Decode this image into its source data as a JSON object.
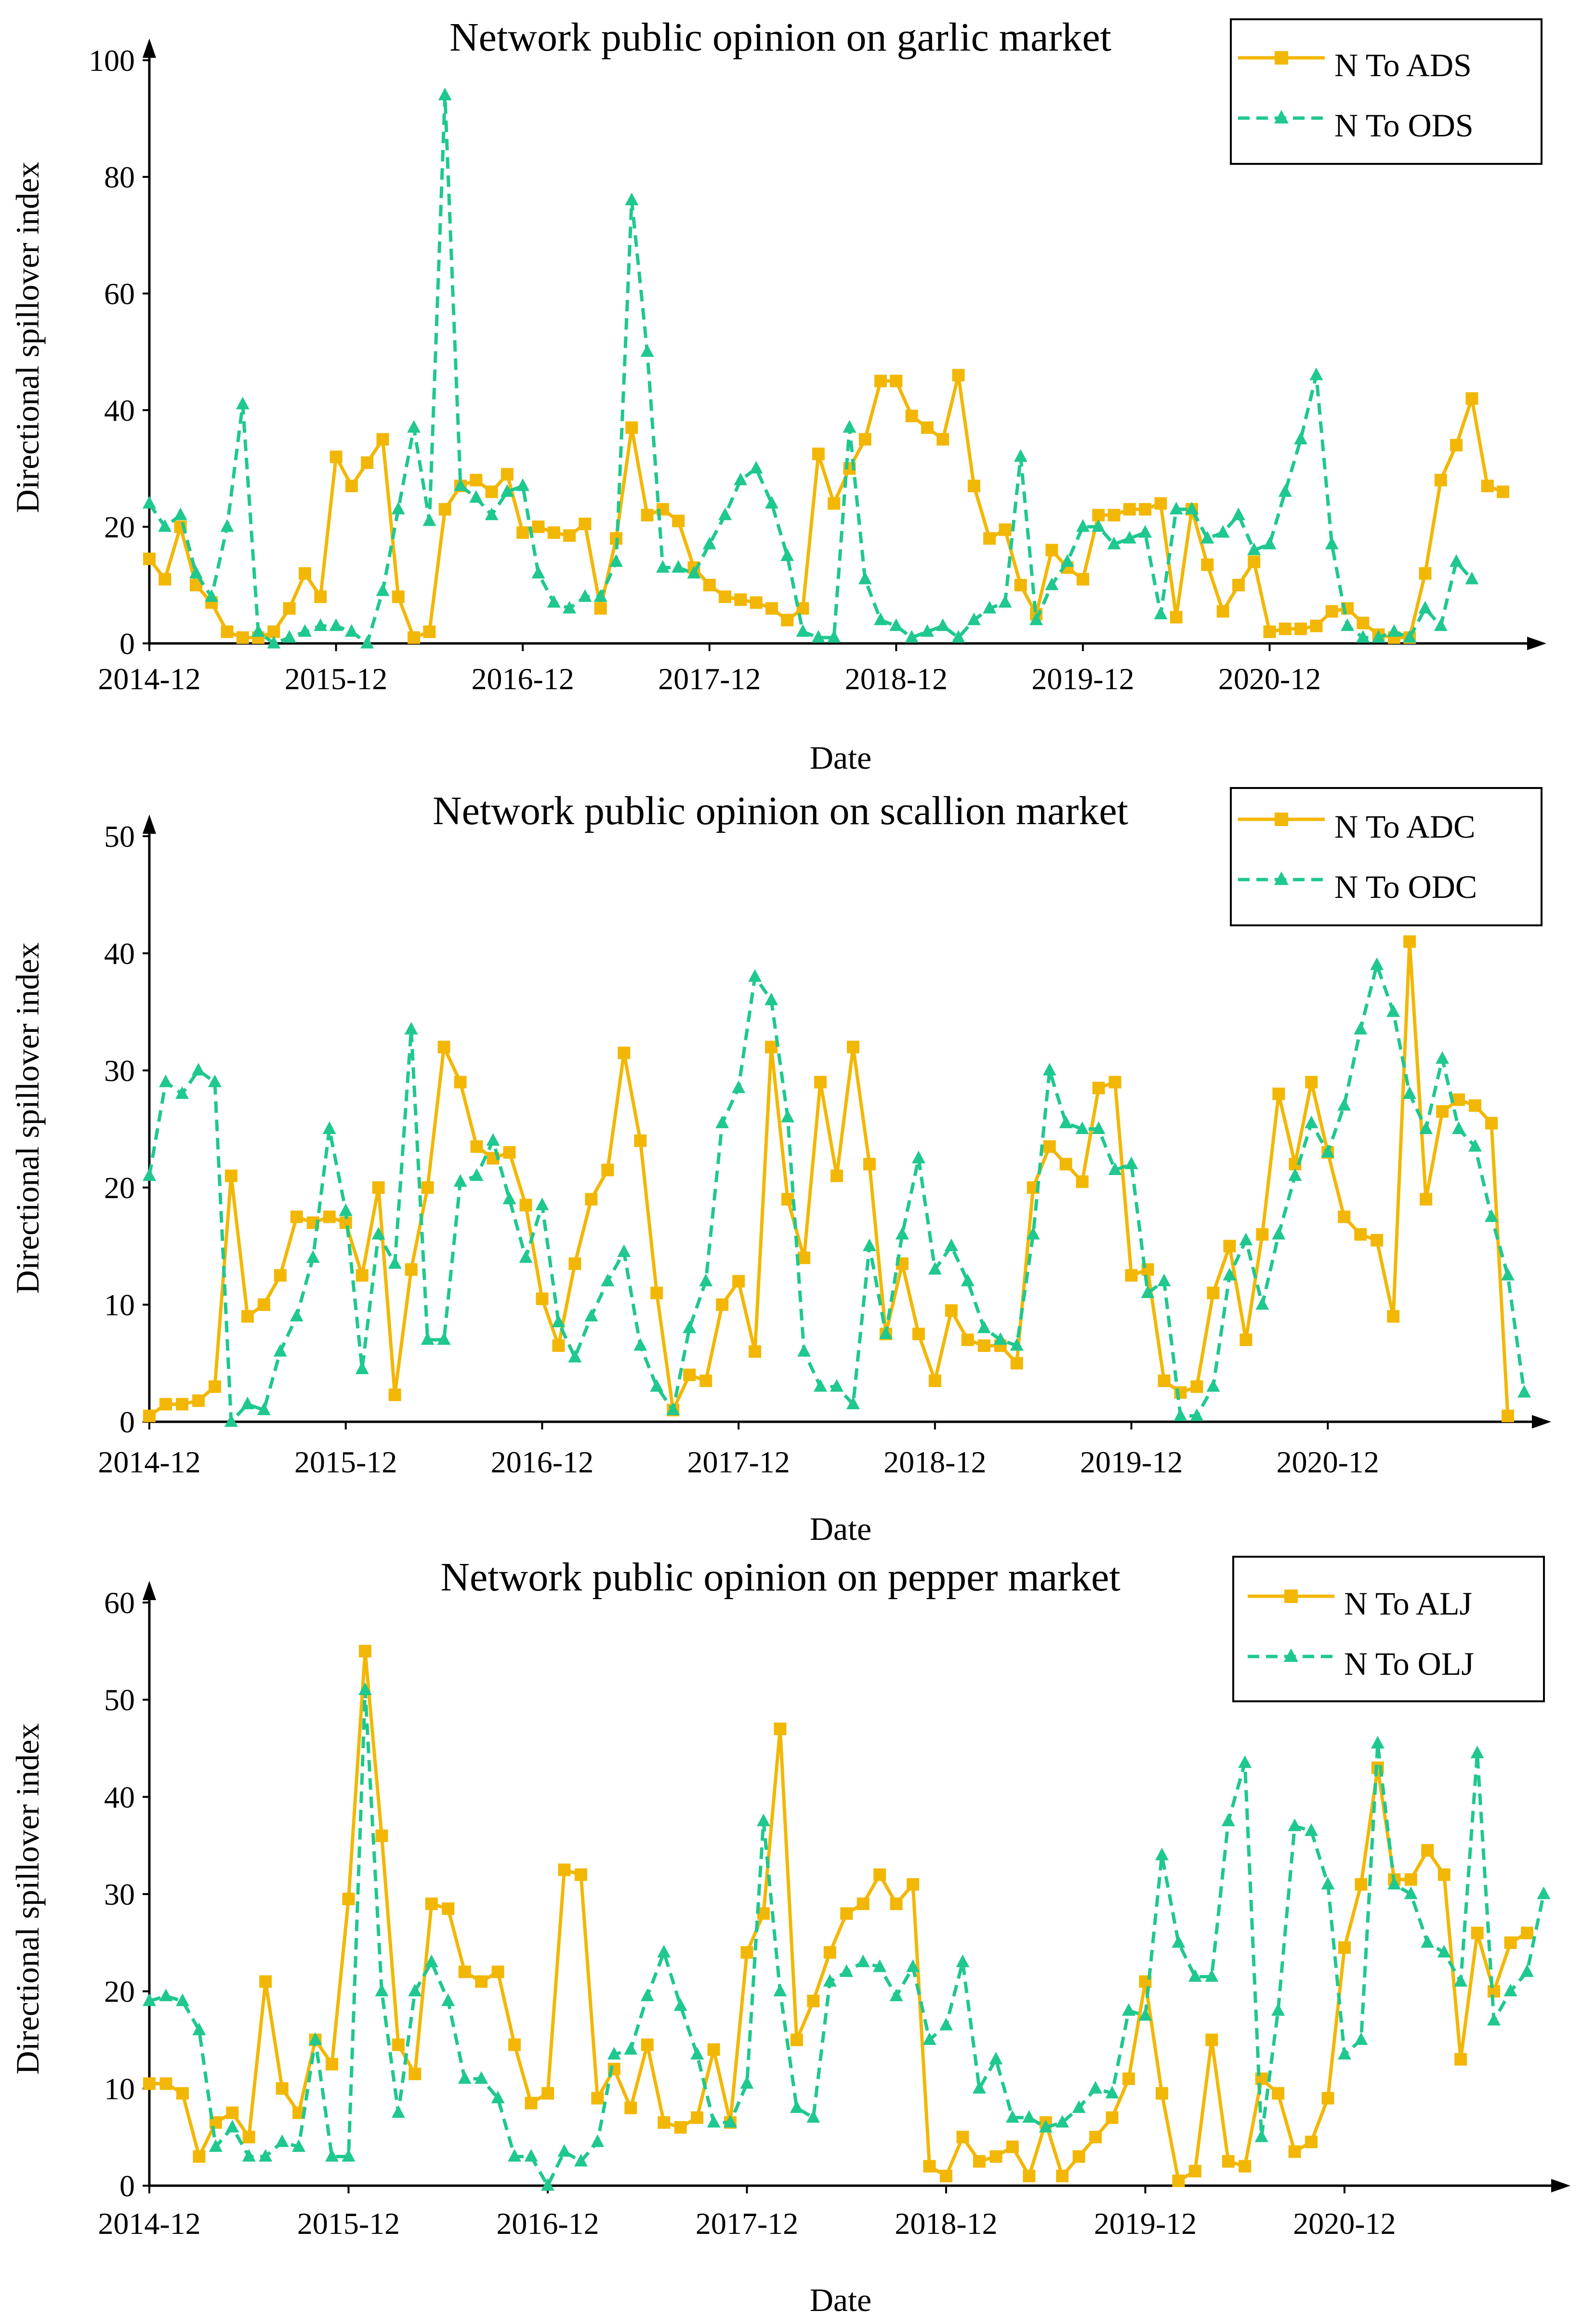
{
  "colors": {
    "series_a": "#F2B705",
    "series_o": "#1FC88E",
    "axis": "#000000"
  },
  "chart_data": [
    {
      "type": "line",
      "title": "Network public opinion on garlic market",
      "xlabel": "Date",
      "ylabel": "Directional spillover index",
      "ylim": [
        0,
        100
      ],
      "yticks": [
        "0",
        "20",
        "40",
        "60",
        "80",
        "100"
      ],
      "xticks": [
        "2014-12",
        "2015-12",
        "2016-12",
        "2017-12",
        "2018-12",
        "2019-12",
        "2020-12"
      ],
      "legend_position": "top-right",
      "series": [
        {
          "name": "N To ADS",
          "style": "solid-square",
          "values": [
            14.5,
            11,
            20,
            10,
            7,
            2,
            1,
            1,
            2,
            6,
            12,
            8,
            32,
            27,
            31,
            35,
            8,
            1,
            2,
            23,
            27,
            28,
            26,
            29,
            19,
            20,
            19,
            18.5,
            20.5,
            6,
            18,
            37,
            22,
            23,
            21,
            13,
            10,
            8,
            7.5,
            7,
            6,
            4,
            6,
            32.5,
            24,
            30,
            35,
            45,
            45,
            39,
            37,
            35,
            46,
            27,
            18,
            19.5,
            10,
            5,
            16,
            13,
            11,
            22,
            22,
            23,
            23,
            24,
            4.5,
            23,
            13.5,
            5.5,
            10,
            14,
            2,
            2.5,
            2.5,
            3,
            5.5,
            6,
            3.5,
            1.5,
            1,
            1,
            12,
            28,
            34,
            42,
            27,
            26
          ]
        },
        {
          "name": "N To ODS",
          "style": "dashed-triangle",
          "values": [
            24,
            20,
            22,
            12,
            8,
            20,
            41,
            2,
            0,
            1,
            2,
            3,
            3,
            2,
            0,
            9,
            23,
            37,
            21,
            94,
            27,
            25,
            22,
            26,
            27,
            12,
            7,
            6,
            8,
            8,
            14,
            76,
            50,
            13,
            13,
            12,
            17,
            22,
            28,
            30,
            24,
            15,
            2,
            1,
            1,
            37,
            11,
            4,
            3,
            1,
            2,
            3,
            1,
            4,
            6,
            7,
            32,
            4,
            10,
            14,
            20,
            20,
            17,
            18,
            19,
            5,
            23,
            23,
            18,
            19,
            22,
            16,
            17,
            26,
            35,
            46,
            17,
            3,
            1,
            1,
            2,
            1,
            6,
            3,
            14,
            11
          ]
        }
      ]
    },
    {
      "type": "line",
      "title": "Network public opinion on scallion market",
      "xlabel": "Date",
      "ylabel": "Directional spillover index",
      "ylim": [
        0,
        50
      ],
      "yticks": [
        "0",
        "10",
        "20",
        "30",
        "40",
        "50"
      ],
      "xticks": [
        "2014-12",
        "2015-12",
        "2016-12",
        "2017-12",
        "2018-12",
        "2019-12",
        "2020-12"
      ],
      "legend_position": "top-right",
      "series": [
        {
          "name": "N To ADC",
          "style": "solid-square",
          "values": [
            0.5,
            1.5,
            1.5,
            1.8,
            3,
            21,
            9,
            10,
            12.5,
            17.5,
            17,
            17.5,
            17,
            12.5,
            20,
            2.3,
            13,
            20,
            32,
            29,
            23.5,
            22.5,
            23,
            18.5,
            10.5,
            6.5,
            13.5,
            19,
            21.5,
            31.5,
            24,
            11,
            1,
            4,
            3.5,
            10,
            12,
            6,
            32,
            19,
            14,
            29,
            21,
            32,
            22,
            7.5,
            13.5,
            7.5,
            3.5,
            9.5,
            7,
            6.5,
            6.5,
            5,
            20,
            23.5,
            22,
            20.5,
            28.5,
            29,
            12.5,
            13,
            3.5,
            2.5,
            3,
            11,
            15,
            7,
            16,
            28,
            22,
            29,
            23,
            17.5,
            16,
            15.5,
            9,
            41,
            19,
            26.5,
            27.5,
            27,
            25.5,
            0.5
          ]
        },
        {
          "name": "N To ODC",
          "style": "dashed-triangle",
          "values": [
            21,
            29,
            28,
            30,
            29,
            0,
            1.5,
            1,
            6,
            9,
            14,
            25,
            18,
            4.5,
            16,
            13.5,
            33.5,
            7,
            7,
            20.5,
            21,
            24,
            19,
            14,
            18.5,
            8.5,
            5.5,
            9,
            12,
            14.5,
            6.5,
            3,
            1,
            8,
            12,
            25.5,
            28.5,
            38,
            36,
            26,
            6,
            3,
            3,
            1.5,
            15,
            7.5,
            16,
            22.5,
            13,
            15,
            12,
            8,
            7,
            6.5,
            16,
            30,
            25.5,
            25,
            25,
            21.5,
            22,
            11,
            12,
            0.5,
            0.5,
            3,
            12.5,
            15.5,
            10,
            16,
            21,
            25.5,
            23,
            27,
            33.5,
            39,
            35,
            28,
            25,
            31,
            25,
            23.5,
            17.5,
            12.5,
            2.5
          ]
        }
      ]
    },
    {
      "type": "line",
      "title": "Network public opinion on pepper market",
      "xlabel": "Date",
      "ylabel": "Directional spillover index",
      "ylim": [
        0,
        60
      ],
      "yticks": [
        "0",
        "10",
        "20",
        "30",
        "40",
        "50",
        "60"
      ],
      "xticks": [
        "2014-12",
        "2015-12",
        "2016-12",
        "2017-12",
        "2018-12",
        "2019-12",
        "2020-12"
      ],
      "legend_position": "top-right",
      "series": [
        {
          "name": "N To ALJ",
          "style": "solid-square",
          "values": [
            10.5,
            10.5,
            9.5,
            3,
            6.5,
            7.5,
            5,
            21,
            10,
            7.5,
            15,
            12.5,
            29.5,
            55,
            36,
            14.5,
            11.5,
            29,
            28.5,
            22,
            21,
            22,
            14.5,
            8.5,
            9.5,
            32.5,
            32,
            9,
            12,
            8,
            14.5,
            6.5,
            6,
            7,
            14,
            6.5,
            24,
            28,
            47,
            15,
            19,
            24,
            28,
            29,
            32,
            29,
            31,
            2,
            1,
            5,
            2.5,
            3,
            4,
            1,
            6.5,
            1,
            3,
            5,
            7,
            11,
            21,
            9.5,
            0.5,
            1.5,
            15,
            2.5,
            2,
            11,
            9.5,
            3.5,
            4.5,
            9,
            24.5,
            31,
            43,
            31.5,
            31.5,
            34.5,
            32,
            13,
            26,
            20,
            25,
            26
          ]
        },
        {
          "name": "N To OLJ",
          "style": "dashed-triangle",
          "values": [
            19,
            19.5,
            19,
            16,
            4,
            6,
            3,
            3,
            4.5,
            4,
            15,
            3,
            3,
            51,
            20,
            7.5,
            20,
            23,
            19,
            11,
            11,
            9,
            3,
            3,
            0,
            3.5,
            2.5,
            4.5,
            13.5,
            14,
            19.5,
            24,
            18.5,
            13.5,
            6.5,
            6.5,
            10.5,
            37.5,
            20,
            8,
            7,
            21,
            22,
            23,
            22.5,
            19.5,
            22.5,
            15,
            16.5,
            23,
            10,
            13,
            7,
            7,
            6,
            6.5,
            8,
            10,
            9.5,
            18,
            17.5,
            34,
            25,
            21.5,
            21.5,
            37.5,
            43.5,
            5,
            18,
            37,
            36.5,
            31,
            13.5,
            15,
            45.5,
            31,
            30,
            25,
            24,
            21,
            44.5,
            17,
            20,
            22,
            30
          ]
        }
      ]
    }
  ]
}
